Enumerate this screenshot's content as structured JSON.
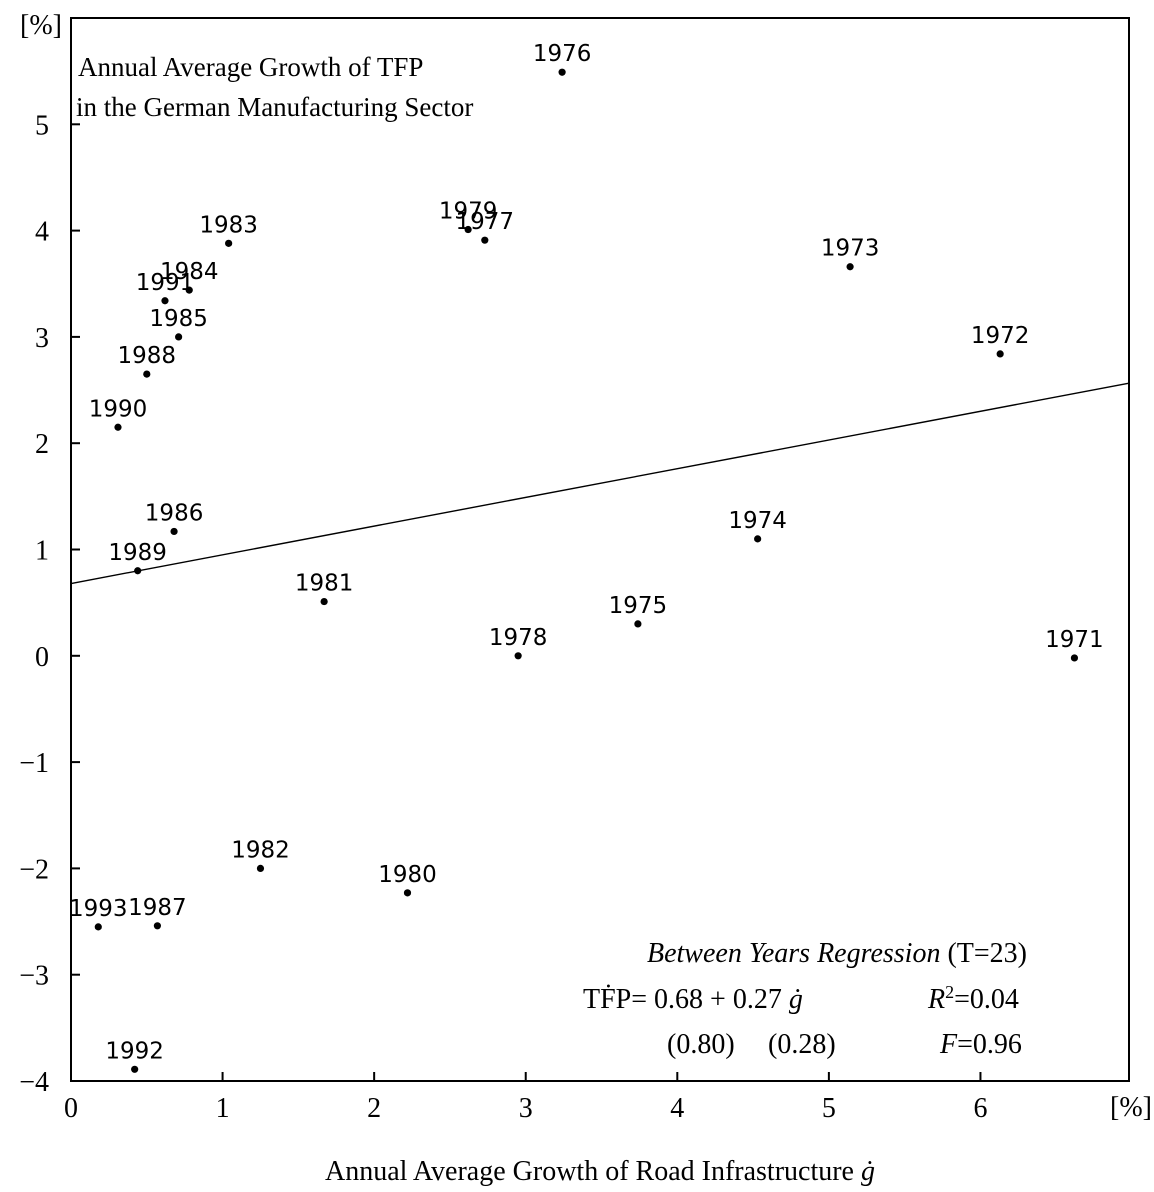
{
  "chart_data": {
    "type": "scatter",
    "title_lines": [
      "Annual Average Growth of TFP",
      "in the German Manufacturing Sector"
    ],
    "xlabel": "Annual Average Growth of Road Infrastructure ",
    "xlabel_symbol": "ġ",
    "x_unit": "[%]",
    "y_unit": "[%]",
    "xlim": [
      0,
      6.98
    ],
    "ylim": [
      -4,
      6.0
    ],
    "x_ticks": [
      0,
      1,
      2,
      3,
      4,
      5,
      6
    ],
    "x_tick_labels": [
      "0",
      "1",
      "2",
      "3",
      "4",
      "5",
      "6"
    ],
    "y_ticks": [
      -4,
      -3,
      -2,
      -1,
      0,
      1,
      2,
      3,
      4,
      5
    ],
    "y_tick_labels": [
      "−4",
      "−3",
      "−2",
      "−1",
      "0",
      "1",
      "2",
      "3",
      "4",
      "5"
    ],
    "grid": false,
    "points": [
      {
        "label": "1971",
        "x": 6.62,
        "y": -0.02
      },
      {
        "label": "1972",
        "x": 6.13,
        "y": 2.84
      },
      {
        "label": "1973",
        "x": 5.14,
        "y": 3.66
      },
      {
        "label": "1974",
        "x": 4.53,
        "y": 1.1
      },
      {
        "label": "1975",
        "x": 3.74,
        "y": 0.3
      },
      {
        "label": "1976",
        "x": 3.24,
        "y": 5.49
      },
      {
        "label": "1977",
        "x": 2.73,
        "y": 3.91
      },
      {
        "label": "1978",
        "x": 2.95,
        "y": 0.0
      },
      {
        "label": "1979",
        "x": 2.62,
        "y": 4.01
      },
      {
        "label": "1980",
        "x": 2.22,
        "y": -2.23
      },
      {
        "label": "1981",
        "x": 1.67,
        "y": 0.51
      },
      {
        "label": "1982",
        "x": 1.25,
        "y": -2.0
      },
      {
        "label": "1983",
        "x": 1.04,
        "y": 3.88
      },
      {
        "label": "1984",
        "x": 0.78,
        "y": 3.44
      },
      {
        "label": "1985",
        "x": 0.71,
        "y": 3.0
      },
      {
        "label": "1986",
        "x": 0.68,
        "y": 1.17
      },
      {
        "label": "1987",
        "x": 0.57,
        "y": -2.54
      },
      {
        "label": "1988",
        "x": 0.5,
        "y": 2.65
      },
      {
        "label": "1989",
        "x": 0.44,
        "y": 0.8
      },
      {
        "label": "1990",
        "x": 0.31,
        "y": 2.15
      },
      {
        "label": "1991",
        "x": 0.62,
        "y": 3.34
      },
      {
        "label": "1992",
        "x": 0.42,
        "y": -3.89
      },
      {
        "label": "1993",
        "x": 0.18,
        "y": -2.55
      }
    ],
    "regression": {
      "intercept": 0.68,
      "slope": 0.27
    },
    "annotation": {
      "title_italic": "Between Years Regression",
      "title_rest": " (T=23)",
      "equation": "TḞP= 0.68 + 0.27 ",
      "equation_symbol": "ġ",
      "r2_symbol": "R",
      "r2_sup": "2",
      "r2_value": "=0.04",
      "se_intercept": "(0.80)",
      "se_slope": "(0.28)",
      "f_symbol": "F",
      "f_value": "=0.96"
    }
  }
}
